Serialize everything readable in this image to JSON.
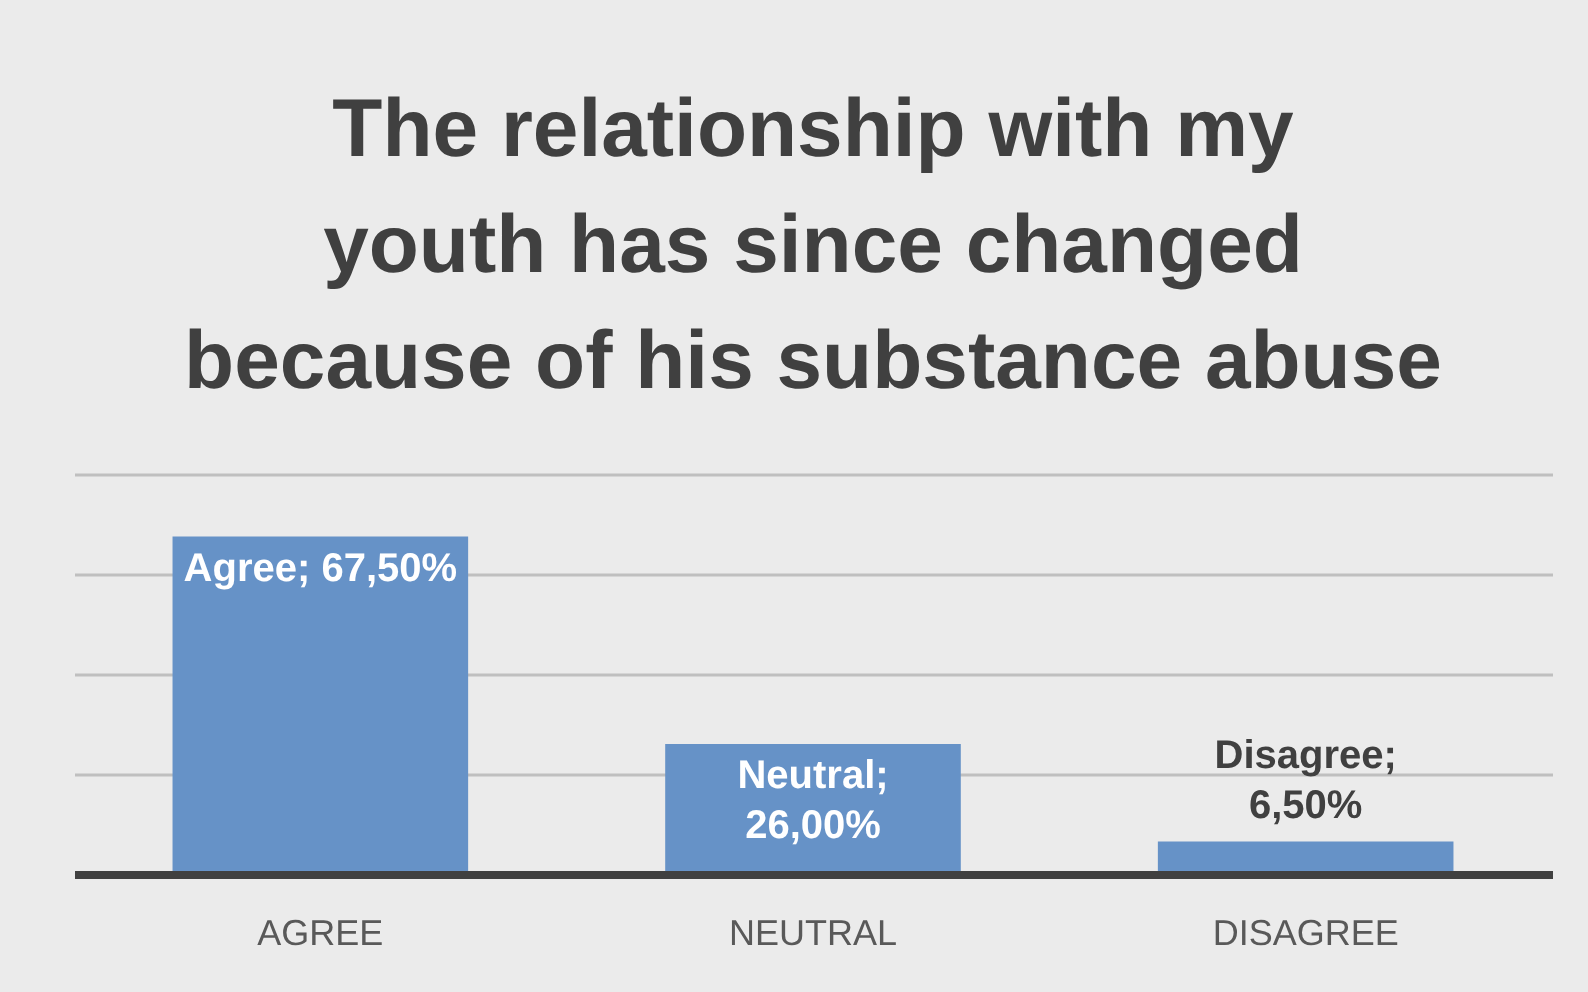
{
  "chart_data": {
    "type": "bar",
    "title": "The relationship with my\nyouth has since changed\nbecause of his substance abuse",
    "categories": [
      "AGREE",
      "NEUTRAL",
      "DISAGREE"
    ],
    "values": [
      67.5,
      26,
      6.5
    ],
    "color": "#6692c7",
    "value_labels": [
      "Agree; 67,50%",
      "Neutral; 26,00%",
      "Disagree; 6,50%"
    ],
    "ylim": [
      0,
      80
    ],
    "yticks": [
      {
        "value": 0,
        "label": null
      },
      {
        "value": 20,
        "label": null
      },
      {
        "value": 40,
        "label": null
      },
      {
        "value": 60,
        "label": null
      },
      {
        "value": 80,
        "label": null
      }
    ],
    "tick_labels": "x",
    "grid": "y"
  }
}
